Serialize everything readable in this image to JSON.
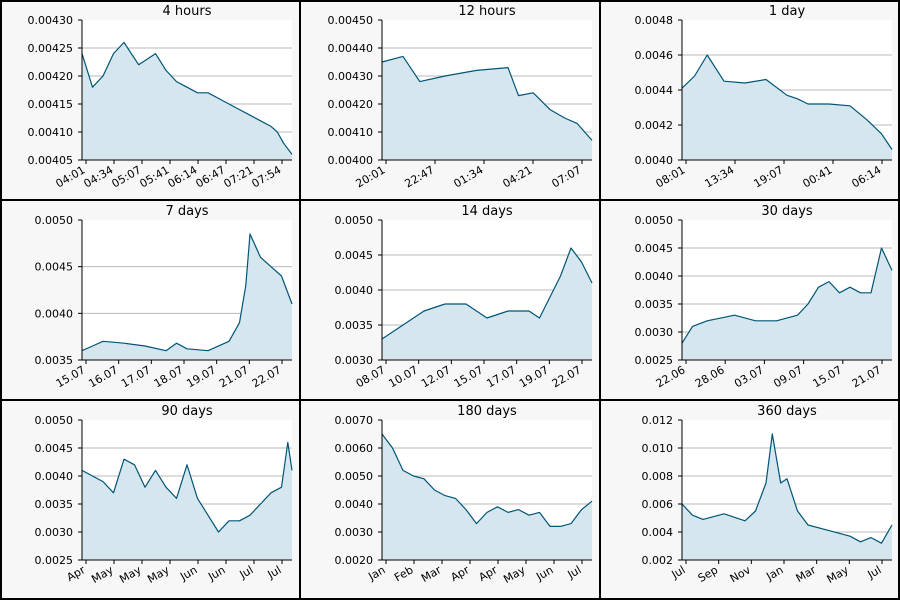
{
  "colors": {
    "line": "#005577",
    "fill": "#d5e6ee",
    "plot_background": "#ffffff",
    "panel_background": "#f7f7f7",
    "gridline": "#b8b8b8",
    "border": "#000000"
  },
  "chart_data": [
    {
      "type": "area",
      "title": "4 hours",
      "ylim": [
        0.00405,
        0.0043
      ],
      "yticks": [
        "0.00405",
        "0.00410",
        "0.00415",
        "0.00420",
        "0.00425",
        "0.00430"
      ],
      "xticks": [
        "04:01",
        "04:34",
        "05:07",
        "05:41",
        "06:14",
        "06:47",
        "07:21",
        "07:54"
      ],
      "x": [
        0,
        0.05,
        0.1,
        0.15,
        0.2,
        0.27,
        0.35,
        0.4,
        0.45,
        0.5,
        0.55,
        0.6,
        0.65,
        0.7,
        0.75,
        0.8,
        0.85,
        0.9,
        0.93,
        0.96,
        1
      ],
      "y": [
        0.00424,
        0.00418,
        0.0042,
        0.00424,
        0.00426,
        0.00422,
        0.00424,
        0.00421,
        0.00419,
        0.00418,
        0.00417,
        0.00417,
        0.00416,
        0.00415,
        0.00414,
        0.00413,
        0.00412,
        0.00411,
        0.0041,
        0.00408,
        0.00406
      ]
    },
    {
      "type": "area",
      "title": "12 hours",
      "ylim": [
        0.004,
        0.0045
      ],
      "yticks": [
        "0.00400",
        "0.00410",
        "0.00420",
        "0.00430",
        "0.00440",
        "0.00450"
      ],
      "xticks": [
        "20:01",
        "22:47",
        "01:34",
        "04:21",
        "07:07"
      ],
      "x": [
        0,
        0.1,
        0.18,
        0.3,
        0.45,
        0.6,
        0.65,
        0.72,
        0.8,
        0.87,
        0.93,
        1
      ],
      "y": [
        0.00435,
        0.00437,
        0.00428,
        0.0043,
        0.00432,
        0.00433,
        0.00423,
        0.00424,
        0.00418,
        0.00415,
        0.00413,
        0.00407
      ]
    },
    {
      "type": "area",
      "title": "1 day",
      "ylim": [
        0.004,
        0.0048
      ],
      "yticks": [
        "0.0040",
        "0.0042",
        "0.0044",
        "0.0046",
        "0.0048"
      ],
      "xticks": [
        "08:01",
        "13:34",
        "19:07",
        "00:41",
        "06:14"
      ],
      "x": [
        0,
        0.06,
        0.12,
        0.2,
        0.3,
        0.4,
        0.5,
        0.55,
        0.6,
        0.7,
        0.8,
        0.88,
        0.95,
        1
      ],
      "y": [
        0.00441,
        0.00448,
        0.0046,
        0.00445,
        0.00444,
        0.00446,
        0.00437,
        0.00435,
        0.00432,
        0.00432,
        0.00431,
        0.00423,
        0.00415,
        0.00406
      ]
    },
    {
      "type": "area",
      "title": "7 days",
      "ylim": [
        0.0035,
        0.005
      ],
      "yticks": [
        "0.0035",
        "0.0040",
        "0.0045",
        "0.0050"
      ],
      "xticks": [
        "15.07",
        "16.07",
        "17.07",
        "18.07",
        "19.07",
        "21.07",
        "22.07"
      ],
      "x": [
        0,
        0.05,
        0.1,
        0.2,
        0.3,
        0.4,
        0.45,
        0.5,
        0.6,
        0.7,
        0.75,
        0.78,
        0.8,
        0.85,
        0.9,
        0.95,
        1
      ],
      "y": [
        0.0036,
        0.00365,
        0.0037,
        0.00368,
        0.00365,
        0.0036,
        0.00368,
        0.00362,
        0.0036,
        0.0037,
        0.0039,
        0.0043,
        0.00485,
        0.0046,
        0.0045,
        0.0044,
        0.0041
      ]
    },
    {
      "type": "area",
      "title": "14 days",
      "ylim": [
        0.003,
        0.005
      ],
      "yticks": [
        "0.0030",
        "0.0035",
        "0.0040",
        "0.0045",
        "0.0050"
      ],
      "xticks": [
        "08.07",
        "10.07",
        "12.07",
        "15.07",
        "17.07",
        "19.07",
        "22.07"
      ],
      "x": [
        0,
        0.1,
        0.2,
        0.3,
        0.4,
        0.5,
        0.6,
        0.7,
        0.75,
        0.8,
        0.85,
        0.9,
        0.95,
        1
      ],
      "y": [
        0.0033,
        0.0035,
        0.0037,
        0.0038,
        0.0038,
        0.0036,
        0.0037,
        0.0037,
        0.0036,
        0.0039,
        0.0042,
        0.0046,
        0.0044,
        0.0041
      ]
    },
    {
      "type": "area",
      "title": "30 days",
      "ylim": [
        0.0025,
        0.005
      ],
      "yticks": [
        "0.0025",
        "0.0030",
        "0.0035",
        "0.0040",
        "0.0045",
        "0.0050"
      ],
      "xticks": [
        "22.06",
        "28.06",
        "03.07",
        "09.07",
        "15.07",
        "21.07"
      ],
      "x": [
        0,
        0.05,
        0.12,
        0.25,
        0.35,
        0.45,
        0.55,
        0.6,
        0.65,
        0.7,
        0.75,
        0.8,
        0.85,
        0.9,
        0.95,
        1
      ],
      "y": [
        0.0028,
        0.0031,
        0.0032,
        0.0033,
        0.0032,
        0.0032,
        0.0033,
        0.0035,
        0.0038,
        0.0039,
        0.0037,
        0.0038,
        0.0037,
        0.0037,
        0.0045,
        0.0041
      ]
    },
    {
      "type": "area",
      "title": "90 days",
      "ylim": [
        0.0025,
        0.005
      ],
      "yticks": [
        "0.0025",
        "0.0030",
        "0.0035",
        "0.0040",
        "0.0045",
        "0.0050"
      ],
      "xticks": [
        "Apr",
        "May",
        "May",
        "May",
        "Jun",
        "Jun",
        "Jul",
        "Jul"
      ],
      "x": [
        0,
        0.05,
        0.1,
        0.15,
        0.2,
        0.25,
        0.3,
        0.35,
        0.4,
        0.45,
        0.5,
        0.55,
        0.6,
        0.65,
        0.7,
        0.75,
        0.8,
        0.85,
        0.9,
        0.95,
        0.98,
        1
      ],
      "y": [
        0.0041,
        0.004,
        0.0039,
        0.0037,
        0.0043,
        0.0042,
        0.0038,
        0.0041,
        0.0038,
        0.0036,
        0.0042,
        0.0036,
        0.0033,
        0.003,
        0.0032,
        0.0032,
        0.0033,
        0.0035,
        0.0037,
        0.0038,
        0.0046,
        0.0041
      ]
    },
    {
      "type": "area",
      "title": "180 days",
      "ylim": [
        0.002,
        0.007
      ],
      "yticks": [
        "0.0020",
        "0.0030",
        "0.0040",
        "0.0050",
        "0.0060",
        "0.0070"
      ],
      "xticks": [
        "Jan",
        "Feb",
        "Mar",
        "Apr",
        "Apr",
        "May",
        "Jun",
        "Jul"
      ],
      "x": [
        0,
        0.05,
        0.1,
        0.15,
        0.2,
        0.25,
        0.3,
        0.35,
        0.4,
        0.45,
        0.5,
        0.55,
        0.6,
        0.65,
        0.7,
        0.75,
        0.8,
        0.85,
        0.9,
        0.95,
        1
      ],
      "y": [
        0.0065,
        0.006,
        0.0052,
        0.005,
        0.0049,
        0.0045,
        0.0043,
        0.0042,
        0.0038,
        0.0033,
        0.0037,
        0.0039,
        0.0037,
        0.0038,
        0.0036,
        0.0037,
        0.0032,
        0.0032,
        0.0033,
        0.0038,
        0.0041
      ]
    },
    {
      "type": "area",
      "title": "360 days",
      "ylim": [
        0.002,
        0.012
      ],
      "yticks": [
        "0.002",
        "0.004",
        "0.006",
        "0.008",
        "0.010",
        "0.012"
      ],
      "xticks": [
        "Jul",
        "Sep",
        "Nov",
        "Jan",
        "Mar",
        "May",
        "Jul"
      ],
      "x": [
        0,
        0.05,
        0.1,
        0.2,
        0.3,
        0.35,
        0.4,
        0.43,
        0.47,
        0.5,
        0.55,
        0.6,
        0.7,
        0.8,
        0.85,
        0.9,
        0.95,
        1
      ],
      "y": [
        0.006,
        0.0052,
        0.0049,
        0.0053,
        0.0048,
        0.0055,
        0.0075,
        0.011,
        0.0075,
        0.0078,
        0.0055,
        0.0045,
        0.0041,
        0.0037,
        0.0033,
        0.0036,
        0.0032,
        0.0045
      ]
    }
  ]
}
